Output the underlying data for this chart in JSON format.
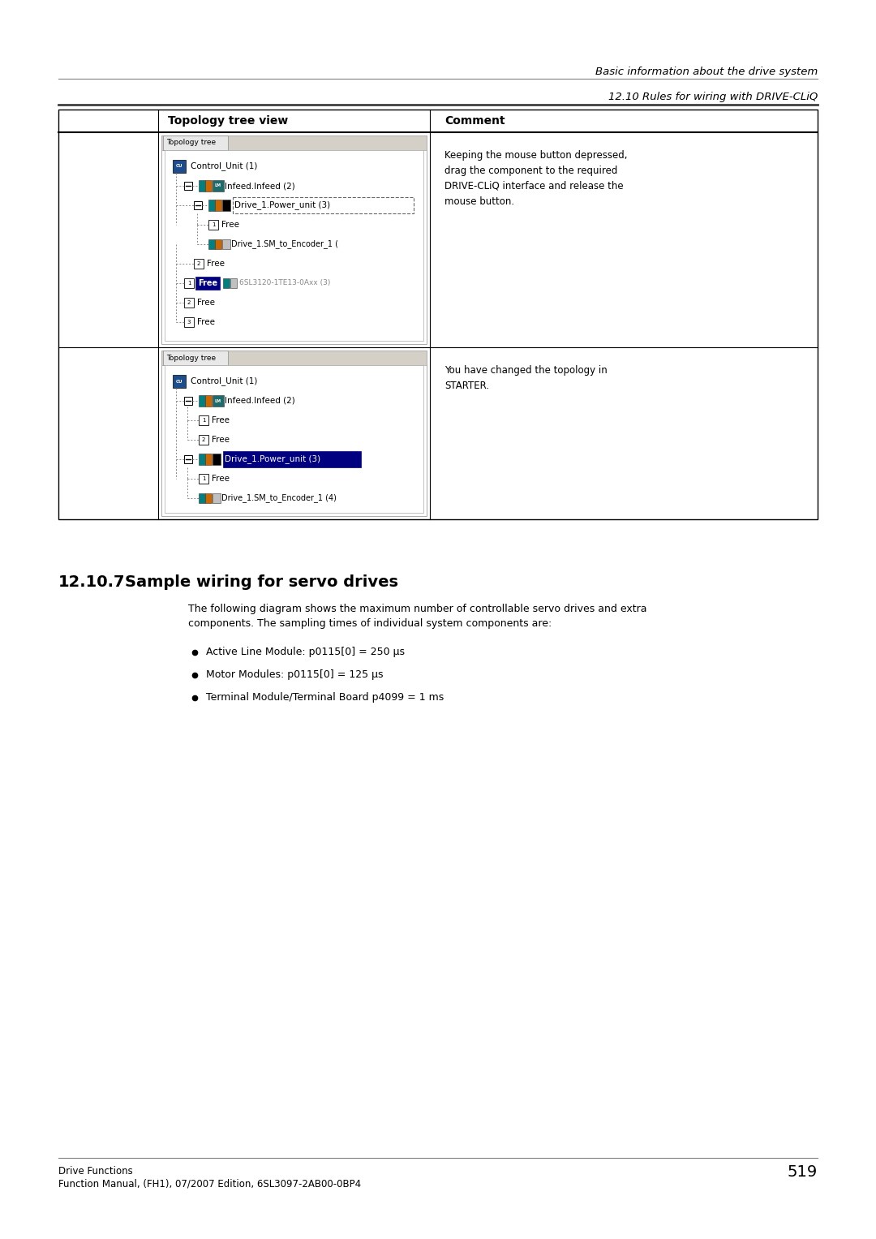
{
  "page_width": 10.8,
  "page_height": 15.27,
  "bg_color": "#ffffff",
  "header_line1": "Basic information about the drive system",
  "header_line2": "12.10 Rules for wiring with DRIVE-CLiQ",
  "section_number": "12.10.7",
  "section_title": "Sample wiring for servo drives",
  "body_text_line1": "The following diagram shows the maximum number of controllable servo drives and extra",
  "body_text_line2": "components. The sampling times of individual system components are:",
  "bullet_points": [
    "Active Line Module: p0115[0] = 250 µs",
    "Motor Modules: p0115[0] = 125 µs",
    "Terminal Module/Terminal Board p4099 = 1 ms"
  ],
  "table_col1_header": "Topology tree view",
  "table_col2_header": "Comment",
  "table_row1_comment_lines": [
    "Keeping the mouse button depressed,",
    "drag the component to the required",
    "DRIVE-CLiQ interface and release the",
    "mouse button."
  ],
  "table_row2_comment_lines": [
    "You have changed the topology in",
    "STARTER."
  ],
  "footer_line1": "Drive Functions",
  "footer_line2": "Function Manual, (FH1), 07/2007 Edition, 6SL3097-2AB00-0BP4",
  "footer_page": "519"
}
